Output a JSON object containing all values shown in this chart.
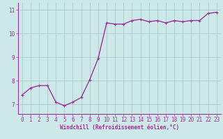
{
  "x": [
    0,
    1,
    2,
    3,
    4,
    5,
    6,
    7,
    8,
    9,
    10,
    11,
    12,
    13,
    14,
    15,
    16,
    17,
    18,
    19,
    20,
    21,
    22,
    23
  ],
  "y": [
    7.4,
    7.7,
    7.8,
    7.8,
    7.1,
    6.95,
    7.1,
    7.3,
    8.05,
    8.95,
    10.45,
    10.4,
    10.4,
    10.55,
    10.6,
    10.5,
    10.55,
    10.45,
    10.55,
    10.5,
    10.55,
    10.55,
    10.85,
    10.9
  ],
  "line_color": "#993399",
  "text_color": "#993399",
  "marker": "+",
  "marker_size": 3,
  "bg_color": "#cce8e8",
  "grid_color": "#aacccc",
  "xlabel": "Windchill (Refroidissement éolien,°C)",
  "xlim": [
    -0.5,
    23.5
  ],
  "ylim": [
    6.6,
    11.3
  ],
  "yticks": [
    7,
    8,
    9,
    10,
    11
  ],
  "xticks": [
    0,
    1,
    2,
    3,
    4,
    5,
    6,
    7,
    8,
    9,
    10,
    11,
    12,
    13,
    14,
    15,
    16,
    17,
    18,
    19,
    20,
    21,
    22,
    23
  ],
  "xlabel_fontsize": 5.5,
  "tick_fontsize": 5.5,
  "line_width": 1.0
}
